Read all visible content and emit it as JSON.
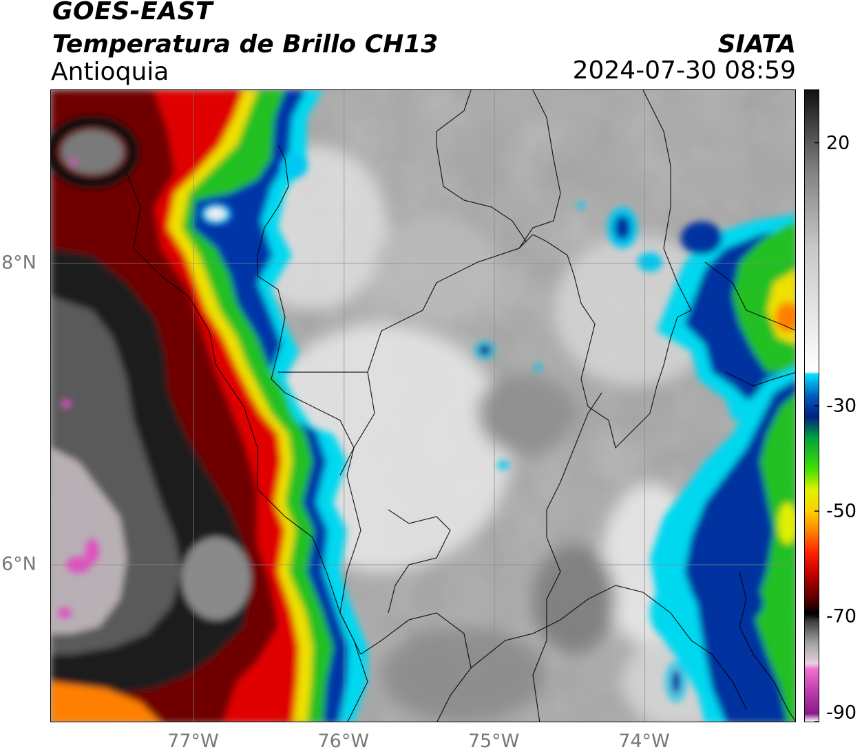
{
  "header": {
    "satellite": "GOES-EAST",
    "product": "Temperatura de Brillo CH13",
    "region": "Antioquia",
    "organization": "SIATA",
    "datetime": "2024-07-30 08:59"
  },
  "map": {
    "extent": {
      "lon_min": -77.95,
      "lon_max": -72.99,
      "lat_min": 4.95,
      "lat_max": 9.15
    },
    "gridlines": true,
    "longitude_ticks": [
      {
        "value": -77,
        "label": "77°W"
      },
      {
        "value": -76,
        "label": "76°W"
      },
      {
        "value": -75,
        "label": "75°W"
      },
      {
        "value": -74,
        "label": "74°W"
      }
    ],
    "latitude_ticks": [
      {
        "value": 8,
        "label": "8°N"
      },
      {
        "value": 6,
        "label": "6°N"
      }
    ],
    "colors": {
      "warm_gray": "#9c9c9c",
      "light_gray": "#e6e6e6",
      "cyan": "#00d8f0",
      "blue": "#0030a0",
      "green": "#20c020",
      "yellow": "#f0e000",
      "orange": "#ff8000",
      "red": "#e00000",
      "dark_red": "#600000",
      "near_black": "#151515",
      "pink": "#e050c0"
    }
  },
  "colorbar": {
    "min": -90,
    "max": 30,
    "ticks": [
      {
        "value": 20,
        "label": "20"
      },
      {
        "value": -30,
        "label": "-30"
      },
      {
        "value": -50,
        "label": "-50"
      },
      {
        "value": -70,
        "label": "-70"
      },
      {
        "value": -90,
        "label": "-90"
      }
    ],
    "stops": [
      {
        "value": -90,
        "color": "#ffffff"
      },
      {
        "value": -88.5,
        "color": "#8a1a8a"
      },
      {
        "value": -84,
        "color": "#c040b0"
      },
      {
        "value": -80,
        "color": "#f070d0"
      },
      {
        "value": -79,
        "color": "#e8d0e0"
      },
      {
        "value": -75,
        "color": "#a0a0a0"
      },
      {
        "value": -71,
        "color": "#404040"
      },
      {
        "value": -69.5,
        "color": "#000000"
      },
      {
        "value": -67,
        "color": "#500000"
      },
      {
        "value": -62,
        "color": "#c00000"
      },
      {
        "value": -58,
        "color": "#ff2000"
      },
      {
        "value": -54,
        "color": "#ff8000"
      },
      {
        "value": -50,
        "color": "#ffd000"
      },
      {
        "value": -46,
        "color": "#e0f000"
      },
      {
        "value": -42,
        "color": "#40e000"
      },
      {
        "value": -36,
        "color": "#00a040"
      },
      {
        "value": -32,
        "color": "#002080"
      },
      {
        "value": -28,
        "color": "#0060c0"
      },
      {
        "value": -24,
        "color": "#00e0ff"
      },
      {
        "value": -23.5,
        "color": "#ffffff"
      },
      {
        "value": 0,
        "color": "#c8c8c8"
      },
      {
        "value": 15,
        "color": "#808080"
      },
      {
        "value": 30,
        "color": "#101010"
      }
    ]
  }
}
